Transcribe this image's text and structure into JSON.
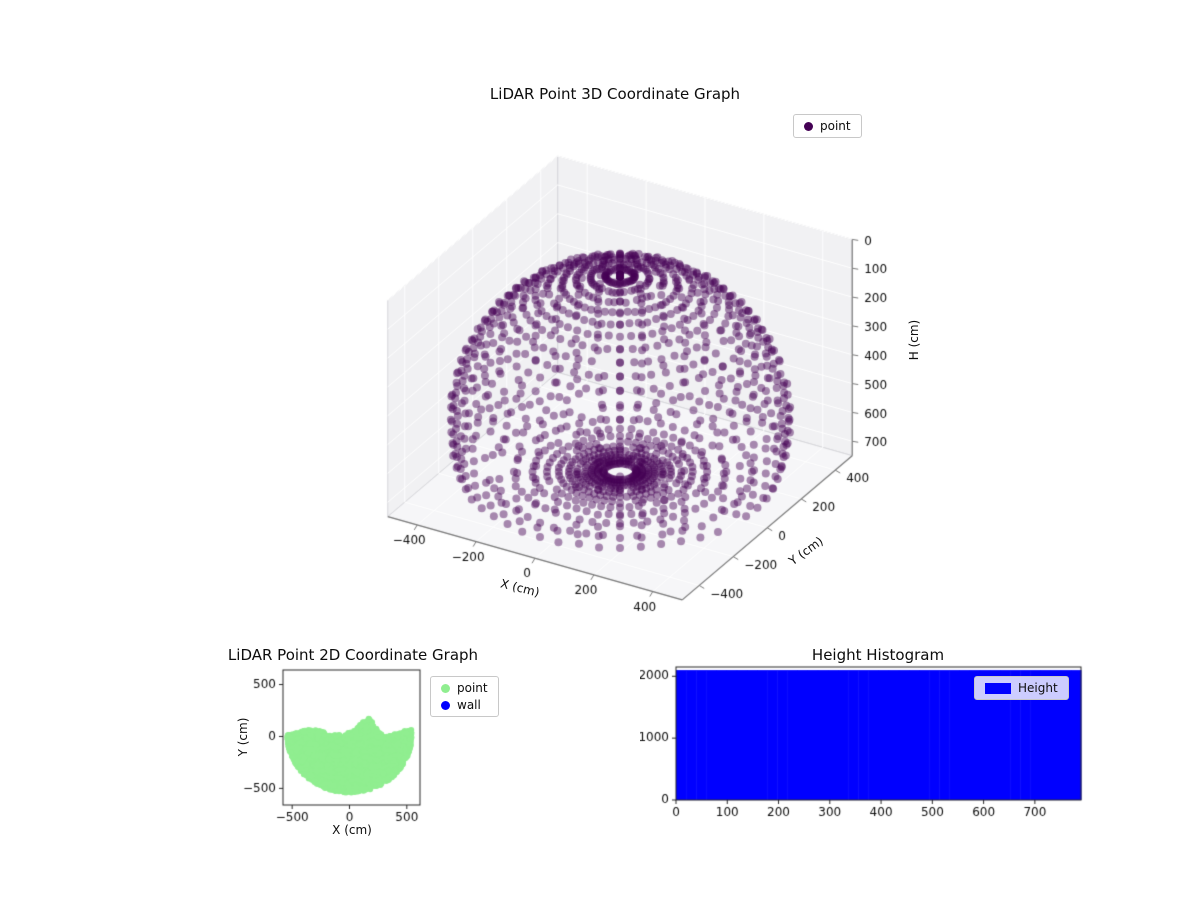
{
  "figure": {
    "background": "#ffffff"
  },
  "chart_data": [
    {
      "id": "lidar-3d",
      "type": "scatter3d",
      "title": "LiDAR Point 3D Coordinate Graph",
      "xlabel": "X (cm)",
      "ylabel": "Y (cm)",
      "zlabel": "H (cm)",
      "xlim": [
        -500,
        500
      ],
      "ylim": [
        -500,
        500
      ],
      "zlim": [
        0,
        750
      ],
      "z_inverted": true,
      "xticks": [
        -400,
        -200,
        0,
        200,
        400
      ],
      "yticks": [
        -400,
        -200,
        0,
        200,
        400
      ],
      "zticks": [
        0,
        100,
        200,
        300,
        400,
        500,
        600,
        700
      ],
      "view": {
        "elev": 30,
        "azim": -60
      },
      "grid": true,
      "pane_color": "#f1f1f3",
      "floor_color": "#f6f6f8",
      "grid_color": "#ffffff",
      "legend": [
        {
          "label": "point",
          "color": "#440154"
        }
      ],
      "point_style": {
        "color": "#440154",
        "alpha": 0.45,
        "size": 4
      },
      "scan_model": {
        "description": "LiDAR rays cast from a sensor inside a hemispherical dome room with a flat floor; dome points form azimuth columns and a dense zenith cap, floor returns form concentric rings",
        "sensor": [
          0,
          0,
          520
        ],
        "dome_radius": 500,
        "floor_h": 700,
        "azimuth_steps": 48,
        "elev_start": 90,
        "elev_end": -75,
        "elev_step": 5,
        "range_noise": 0.008,
        "dropout": 0.1,
        "seed": 42
      }
    },
    {
      "id": "lidar-2d",
      "type": "scatter",
      "title": "LiDAR Point 2D Coordinate Graph",
      "xlabel": "X (cm)",
      "ylabel": "Y (cm)",
      "xlim": [
        -580,
        615
      ],
      "ylim": [
        -660,
        640
      ],
      "xticks": [
        -500,
        0,
        500
      ],
      "yticks": [
        -500,
        0,
        500
      ],
      "legend": [
        {
          "label": "point",
          "color": "#90ee90"
        },
        {
          "label": "wall",
          "color": "#0000ff"
        }
      ],
      "blob": {
        "description": "solid half-disc of floor points below y=0 with a wavy upper edge and a bump near x=160",
        "center": [
          0,
          0
        ],
        "radius": 540,
        "top_base": 40,
        "top_wave_amp": 25,
        "top_wave_len": 70,
        "bump_center": 160,
        "bump_height": 120,
        "bump_width": 70,
        "n_points": 3000,
        "seed": 7,
        "color": "#90ee90",
        "size": 3
      }
    },
    {
      "id": "height-histogram",
      "type": "histogram",
      "title": "Height Histogram",
      "xlim": [
        0,
        790
      ],
      "ylim": [
        0,
        2150
      ],
      "xticks": [
        0,
        100,
        200,
        300,
        400,
        500,
        600,
        700
      ],
      "yticks": [
        0,
        1000,
        2000
      ],
      "bar_color": "#0000ff",
      "legend": [
        {
          "label": "Height",
          "color": "#0000ff"
        }
      ],
      "bins": {
        "start": 0,
        "width": 19.75,
        "counts": [
          2100,
          2100,
          2100,
          2100,
          2100,
          2100,
          2100,
          2100,
          2100,
          2100,
          2100,
          2100,
          2100,
          2100,
          2100,
          2100,
          2100,
          2100,
          2100,
          2100,
          2100,
          2100,
          2100,
          2100,
          2100,
          2100,
          2100,
          2100,
          2100,
          2100,
          2100,
          2100,
          2100,
          2100,
          2100,
          2100,
          2100,
          2100,
          2100,
          2100
        ]
      }
    }
  ]
}
